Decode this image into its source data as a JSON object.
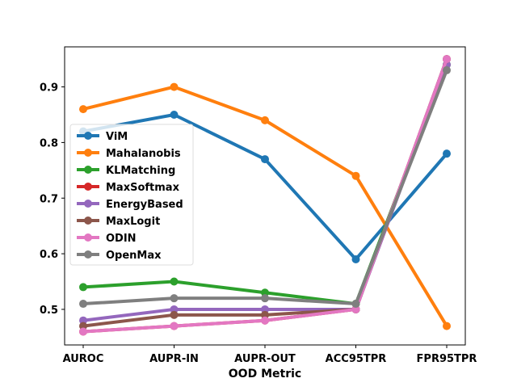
{
  "chart_data": {
    "type": "line",
    "title": "",
    "xlabel": "OOD Metric",
    "ylabel": "",
    "categories": [
      "AUROC",
      "AUPR-IN",
      "AUPR-OUT",
      "ACC95TPR",
      "FPR95TPR"
    ],
    "ylim": [
      0.436,
      0.972
    ],
    "yticks": [
      0.5,
      0.6,
      0.7,
      0.8,
      0.9
    ],
    "ytick_labels": [
      "0.5",
      "0.6",
      "0.7",
      "0.8",
      "0.9"
    ],
    "grid": false,
    "legend_position": "center-left",
    "series": [
      {
        "name": "ViM",
        "color": "#1f77b4",
        "values": [
          0.82,
          0.85,
          0.77,
          0.59,
          0.78
        ]
      },
      {
        "name": "Mahalanobis",
        "color": "#ff7f0e",
        "values": [
          0.86,
          0.9,
          0.84,
          0.74,
          0.47
        ]
      },
      {
        "name": "KLMatching",
        "color": "#2ca02c",
        "values": [
          0.54,
          0.55,
          0.53,
          0.51,
          0.94
        ]
      },
      {
        "name": "MaxSoftmax",
        "color": "#d62728",
        "values": [
          0.46,
          0.47,
          0.48,
          0.5,
          0.95
        ]
      },
      {
        "name": "EnergyBased",
        "color": "#9467bd",
        "values": [
          0.48,
          0.5,
          0.5,
          0.5,
          0.94
        ]
      },
      {
        "name": "MaxLogit",
        "color": "#8c564b",
        "values": [
          0.47,
          0.49,
          0.49,
          0.5,
          0.95
        ]
      },
      {
        "name": "ODIN",
        "color": "#e377c2",
        "values": [
          0.46,
          0.47,
          0.48,
          0.5,
          0.95
        ]
      },
      {
        "name": "OpenMax",
        "color": "#7f7f7f",
        "values": [
          0.51,
          0.52,
          0.52,
          0.51,
          0.93
        ]
      }
    ]
  }
}
